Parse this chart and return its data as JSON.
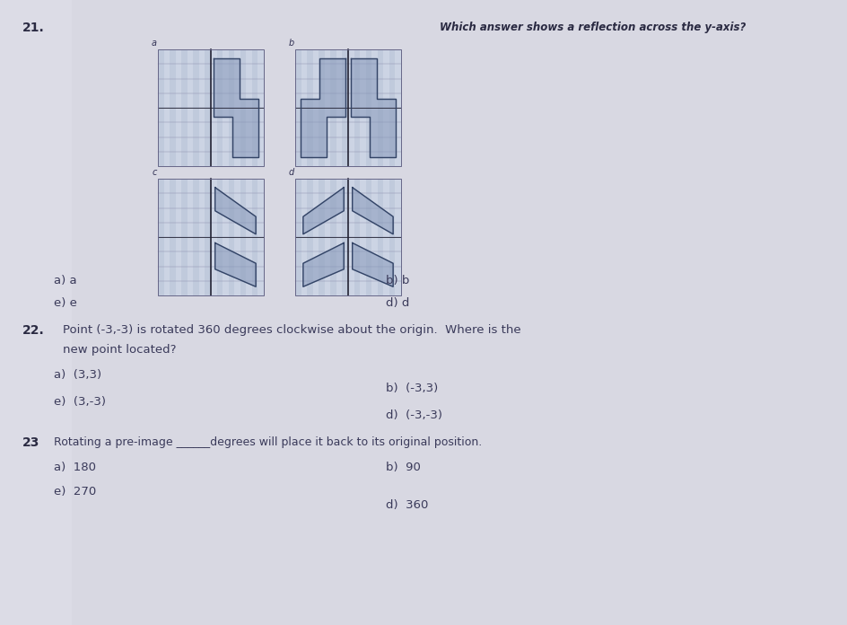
{
  "figure_bg": "#d0d0da",
  "page_bg": "#e2e2ea",
  "text_color": "#3a3a5a",
  "bold_color": "#2a2a42",
  "grid_bg_light": "#c8cedd",
  "grid_bg_dark": "#b8c2d0",
  "grid_line_color": "#9090aa",
  "axis_color": "#222233",
  "shape_color": "#445566",
  "q21_num": "21.",
  "q21_text": "Which answer shows a reflection across the y-axis?",
  "ans_21_a": "a) a",
  "ans_21_b": "b) b",
  "ans_21_c": "e) e",
  "ans_21_d": "d) d",
  "q22_num": "22.",
  "q22_line1": "Point (-3,-3) is rotated 360 degrees clockwise about the origin.  Where is the",
  "q22_line2": "new point located?",
  "ans_22_a": "a)  (3,3)",
  "ans_22_b": "b)  (-3,3)",
  "ans_22_c": "e)  (3,-3)",
  "ans_22_d": "d)  (-3,-3)",
  "q23_num": "23",
  "q23_text": "Rotating a pre-image ______degrees will place it back to its original position.",
  "ans_23_a": "a)  180",
  "ans_23_b": "b)  90",
  "ans_23_c": "e)  270",
  "ans_23_d": "d)  360"
}
